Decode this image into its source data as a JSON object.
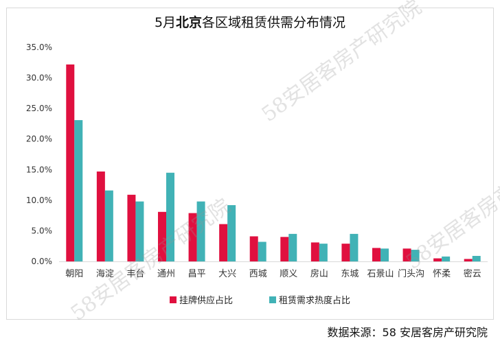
{
  "source_note": "数据来源：58 安居客房产研究院",
  "watermark": "58安居客房产研究院",
  "colors": {
    "supply": "#e0103f",
    "demand": "#41b2b6",
    "grid": "#d9d9d9",
    "axis_text": "#333333"
  },
  "chart_data": {
    "type": "bar",
    "title": "5月北京各区域租赁供需分布情况",
    "title_prefix": "5月",
    "title_bold": "北京",
    "title_suffix": "各区域租赁供需分布情况",
    "xlabel": "",
    "ylabel": "",
    "ylim": [
      0,
      35
    ],
    "yticks": [
      "0.0%",
      "5.0%",
      "10.0%",
      "15.0%",
      "20.0%",
      "25.0%",
      "30.0%",
      "35.0%"
    ],
    "ytick_values": [
      0,
      5,
      10,
      15,
      20,
      25,
      30,
      35
    ],
    "grid": false,
    "legend_position": "bottom-center",
    "categories": [
      "朝阳",
      "海淀",
      "丰台",
      "通州",
      "昌平",
      "大兴",
      "西城",
      "顺义",
      "房山",
      "东城",
      "石景山",
      "门头沟",
      "怀柔",
      "密云"
    ],
    "series": [
      {
        "name": "挂牌供应占比",
        "values": [
          32.2,
          14.7,
          10.9,
          8.1,
          7.9,
          6.1,
          4.1,
          4.0,
          3.1,
          2.9,
          2.2,
          2.1,
          0.5,
          0.4
        ]
      },
      {
        "name": "租赁需求热度占比",
        "values": [
          23.1,
          11.6,
          9.8,
          14.5,
          9.8,
          9.2,
          3.2,
          4.5,
          2.9,
          4.5,
          2.1,
          1.9,
          0.8,
          0.9
        ]
      }
    ]
  }
}
